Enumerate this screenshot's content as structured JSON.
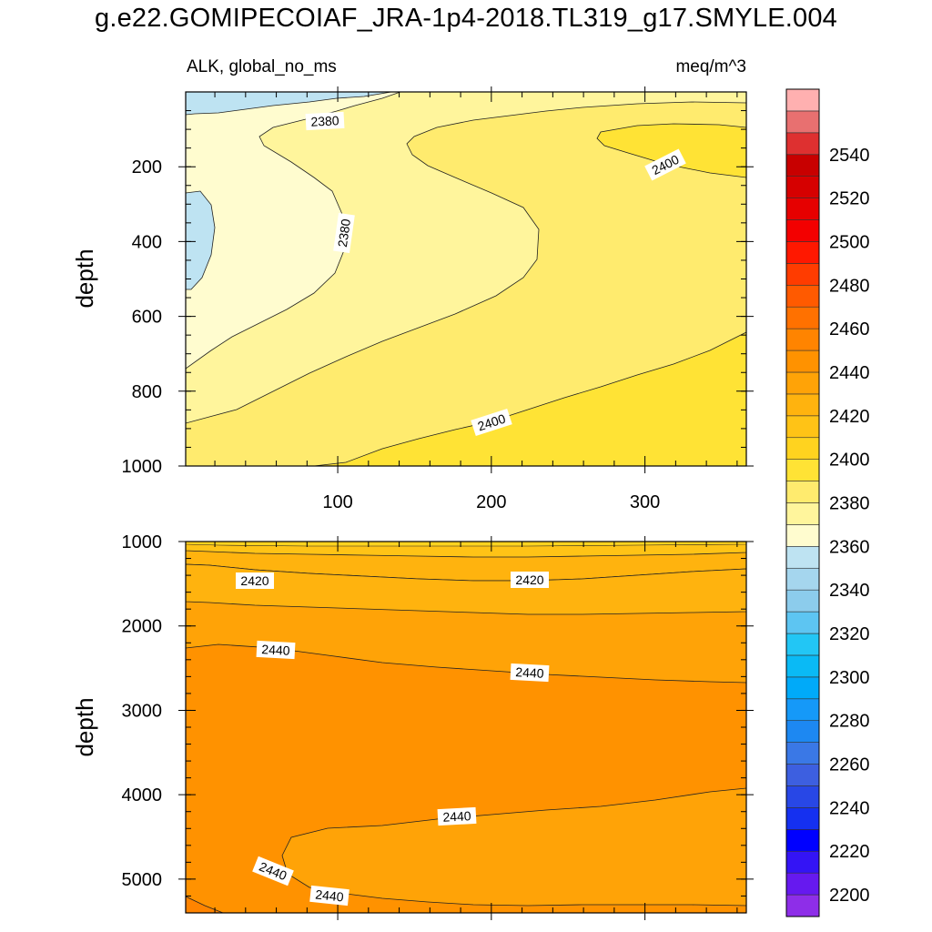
{
  "title": "g.e22.GOMIPECOIAF_JRA-1p4-2018.TL319_g17.SMYLE.004",
  "variable_label": "ALK, global_no_ms",
  "units_label": "meq/m^3",
  "colorbar": {
    "colors": [
      "#8e2ee8",
      "#6619ef",
      "#3414f5",
      "#0000ff",
      "#1530f0",
      "#2847e6",
      "#3d5fe0",
      "#3a78e6",
      "#1d88f2",
      "#1599f8",
      "#00aaf9",
      "#0abaf5",
      "#22c6f5",
      "#5dc5f2",
      "#8cccec",
      "#a5d6ee",
      "#bee3f2",
      "#fffccf",
      "#fff59c",
      "#ffeb6e",
      "#ffe335",
      "#ffd31f",
      "#ffc316",
      "#ffb30e",
      "#ffa307",
      "#ff9200",
      "#ff8400",
      "#ff7100",
      "#ff5a00",
      "#ff3c00",
      "#ff1800",
      "#f30000",
      "#e60000",
      "#d60000",
      "#c80000",
      "#de3030",
      "#e87070",
      "#ffb0b0"
    ],
    "tick_labels": [
      "2200",
      "2220",
      "2240",
      "2260",
      "2280",
      "2300",
      "2320",
      "2340",
      "2360",
      "2380",
      "2400",
      "2420",
      "2440",
      "2460",
      "2480",
      "2500",
      "2520",
      "2540"
    ]
  },
  "chart_data": [
    {
      "type": "contour",
      "panel": "upper",
      "ylabel": "depth",
      "y_reversed": true,
      "ylim": [
        1000,
        0
      ],
      "xlim": [
        1,
        366
      ],
      "x_tick_labels": [
        "100",
        "200",
        "300"
      ],
      "y_tick_labels": [
        "200",
        "400",
        "600",
        "800",
        "1000"
      ],
      "contour_labels": [
        "2380",
        "2380",
        "2400",
        "2400"
      ],
      "levels_present": [
        2360,
        2370,
        2380,
        2390,
        2400,
        2410
      ]
    },
    {
      "type": "contour",
      "panel": "lower",
      "ylabel": "depth",
      "y_reversed": true,
      "ylim": [
        5400,
        1000
      ],
      "xlim": [
        1,
        366
      ],
      "y_tick_labels": [
        "1000",
        "2000",
        "3000",
        "4000",
        "5000"
      ],
      "contour_labels": [
        "2420",
        "2420",
        "2440",
        "2440",
        "2440",
        "2440",
        "2440"
      ],
      "levels_present": [
        2410,
        2420,
        2430,
        2440,
        2450
      ]
    }
  ]
}
